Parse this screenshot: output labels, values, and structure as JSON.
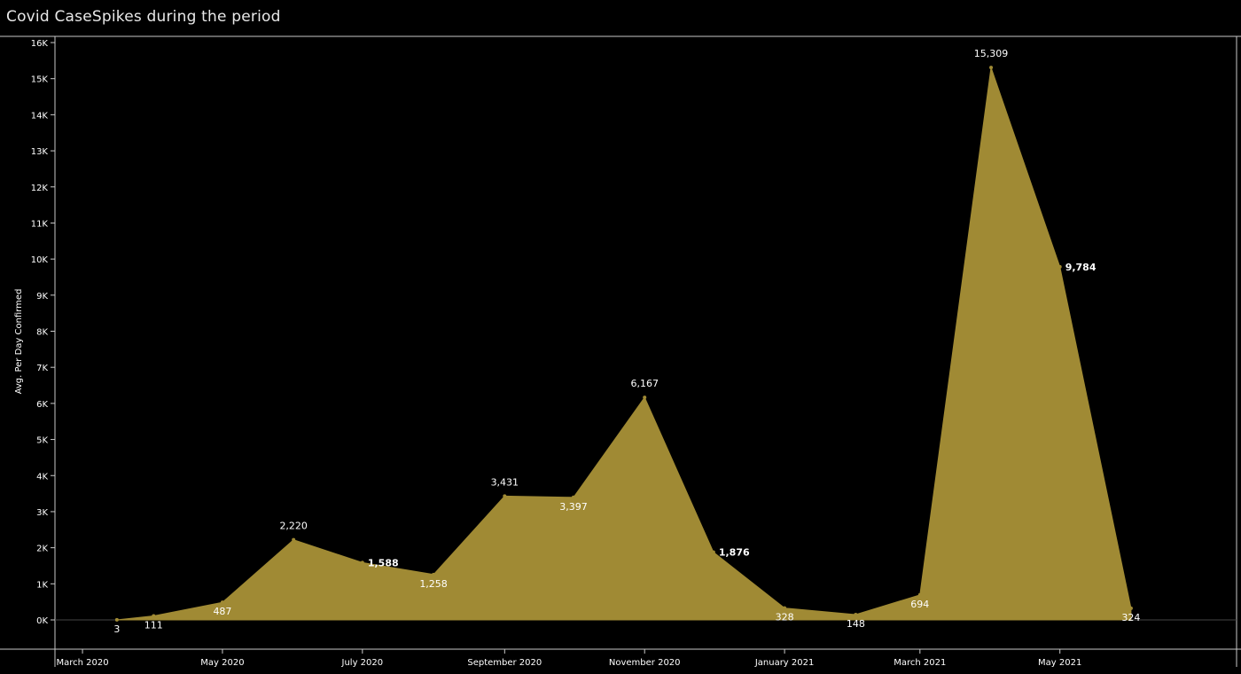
{
  "title": "Covid CaseSpikes during the period",
  "chart_data": {
    "type": "area",
    "title": "Covid CaseSpikes during the period",
    "xlabel": "",
    "ylabel": "Avg. Per Day Confirmed",
    "ylim": [
      0,
      16000
    ],
    "y_ticks": [
      0,
      1000,
      2000,
      3000,
      4000,
      5000,
      6000,
      7000,
      8000,
      9000,
      10000,
      11000,
      12000,
      13000,
      14000,
      15000,
      16000
    ],
    "y_tick_labels": [
      "0K",
      "1K",
      "2K",
      "3K",
      "4K",
      "5K",
      "6K",
      "7K",
      "8K",
      "9K",
      "10K",
      "11K",
      "12K",
      "13K",
      "14K",
      "15K",
      "16K"
    ],
    "x_range": [
      "2020-02-18",
      "2021-07-17"
    ],
    "x_ticks": [
      "2020-03-01",
      "2020-05-01",
      "2020-07-01",
      "2020-09-01",
      "2020-11-01",
      "2021-01-01",
      "2021-03-01",
      "2021-05-01"
    ],
    "x_tick_labels": [
      "March 2020",
      "May 2020",
      "July 2020",
      "September 2020",
      "November 2020",
      "January 2021",
      "March 2021",
      "May 2021"
    ],
    "fill_color": "#A08A34",
    "grid": false,
    "points": [
      {
        "x": "2020-03-16",
        "y": 3,
        "label": "3"
      },
      {
        "x": "2020-04-01",
        "y": 111,
        "label": "111"
      },
      {
        "x": "2020-05-01",
        "y": 487,
        "label": "487"
      },
      {
        "x": "2020-06-01",
        "y": 2220,
        "label": "2,220"
      },
      {
        "x": "2020-07-01",
        "y": 1588,
        "label": "1,588"
      },
      {
        "x": "2020-08-01",
        "y": 1258,
        "label": "1,258"
      },
      {
        "x": "2020-09-01",
        "y": 3431,
        "label": "3,431"
      },
      {
        "x": "2020-10-01",
        "y": 3397,
        "label": "3,397"
      },
      {
        "x": "2020-11-01",
        "y": 6167,
        "label": "6,167"
      },
      {
        "x": "2020-12-01",
        "y": 1876,
        "label": "1,876"
      },
      {
        "x": "2021-01-01",
        "y": 328,
        "label": "328"
      },
      {
        "x": "2021-02-01",
        "y": 148,
        "label": "148"
      },
      {
        "x": "2021-03-01",
        "y": 694,
        "label": "694"
      },
      {
        "x": "2021-04-01",
        "y": 15309,
        "label": "15,309"
      },
      {
        "x": "2021-05-01",
        "y": 9784,
        "label": "9,784"
      },
      {
        "x": "2021-06-01",
        "y": 324,
        "label": "324"
      }
    ]
  }
}
